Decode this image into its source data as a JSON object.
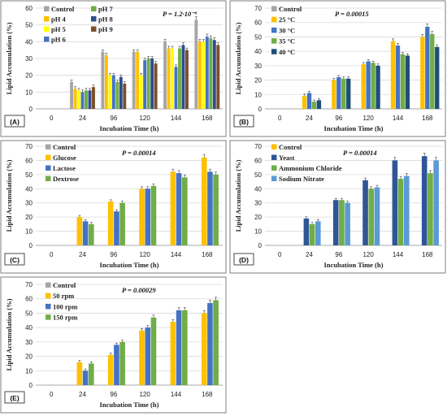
{
  "chart_data": [
    {
      "id": "A",
      "type": "bar",
      "panel_label": "(A)",
      "annotation": "P = 1.2·10⁻⁶",
      "xlabel": "Incubation Time (h)",
      "ylabel": "Lipid Accumulation (%)",
      "ylim": [
        0,
        60
      ],
      "yticks": [
        0,
        10,
        20,
        30,
        40,
        50,
        60
      ],
      "categories": [
        "0",
        "24",
        "96",
        "120",
        "144",
        "168"
      ],
      "legend_columns": 2,
      "series": [
        {
          "name": "Control",
          "color": "#a6a6a6",
          "values": [
            0,
            16,
            34,
            34,
            40,
            53
          ]
        },
        {
          "name": "pH 4",
          "color": "#ffc000",
          "values": [
            0,
            12,
            32,
            34,
            36,
            40
          ]
        },
        {
          "name": "pH 5",
          "color": "#ffff00",
          "values": [
            0,
            11,
            20,
            20,
            36,
            40
          ]
        },
        {
          "name": "pH 6",
          "color": "#4472c4",
          "values": [
            0,
            10,
            20,
            29,
            25,
            43
          ]
        },
        {
          "name": "pH 7",
          "color": "#70ad47",
          "values": [
            0,
            11,
            16,
            30,
            36,
            42
          ]
        },
        {
          "name": "pH 8",
          "color": "#2e4d8a",
          "values": [
            0,
            11,
            19,
            30,
            38,
            41
          ]
        },
        {
          "name": "pH 9",
          "color": "#7b4f2a",
          "values": [
            0,
            13,
            15,
            27,
            35,
            38
          ]
        }
      ]
    },
    {
      "id": "B",
      "type": "bar",
      "panel_label": "(B)",
      "annotation": "P = 0.00015",
      "xlabel": "Incubation Time (h)",
      "ylabel": "Lipid Accumulation (%)",
      "ylim": [
        0,
        70
      ],
      "yticks": [
        0,
        10,
        20,
        30,
        40,
        50,
        60,
        70
      ],
      "categories": [
        "0",
        "24",
        "96",
        "120",
        "144",
        "168"
      ],
      "legend_columns": 1,
      "series": [
        {
          "name": "Control",
          "color": "#a6a6a6",
          "values": [
            0,
            0,
            0,
            0,
            0,
            0
          ]
        },
        {
          "name": "25 °C",
          "color": "#ffc000",
          "values": [
            0,
            9,
            20,
            31,
            47,
            50
          ]
        },
        {
          "name": "30 °C",
          "color": "#4472c4",
          "values": [
            0,
            11,
            22,
            33,
            44,
            57
          ]
        },
        {
          "name": "35 °C",
          "color": "#70ad47",
          "values": [
            0,
            5,
            21,
            32,
            38,
            52
          ]
        },
        {
          "name": "40 °C",
          "color": "#1f4e79",
          "values": [
            0,
            6,
            21,
            30,
            37,
            43
          ]
        }
      ]
    },
    {
      "id": "C",
      "type": "bar",
      "panel_label": "(C)",
      "annotation": "P = 0.00014",
      "xlabel": "Incubation Time (h)",
      "ylabel": "Lipid Accumulation (%)",
      "ylim": [
        0,
        70
      ],
      "yticks": [
        0,
        10,
        20,
        30,
        40,
        50,
        60,
        70
      ],
      "categories": [
        "0",
        "24",
        "96",
        "120",
        "144",
        "168"
      ],
      "legend_columns": 1,
      "series": [
        {
          "name": "Control",
          "color": "#a6a6a6",
          "values": [
            0,
            0,
            0,
            0,
            0,
            0
          ]
        },
        {
          "name": "Glucose",
          "color": "#ffc000",
          "values": [
            0,
            20,
            31,
            40,
            52,
            62
          ]
        },
        {
          "name": "Lactose",
          "color": "#4472c4",
          "values": [
            0,
            17,
            24,
            40,
            51,
            52
          ]
        },
        {
          "name": "Dextrose",
          "color": "#70ad47",
          "values": [
            0,
            15,
            30,
            42,
            48,
            50
          ]
        }
      ]
    },
    {
      "id": "D",
      "type": "bar",
      "panel_label": "(D)",
      "annotation": "P = 0.00014",
      "xlabel": "Incubation Time (h)",
      "ylabel": "Lipid Accumulation (%)",
      "ylim": [
        0,
        70
      ],
      "yticks": [
        0,
        10,
        20,
        30,
        40,
        50,
        60,
        70
      ],
      "categories": [
        "0",
        "24",
        "96",
        "120",
        "144",
        "168"
      ],
      "legend_columns": 1,
      "series": [
        {
          "name": "Control",
          "color": "#ffc000",
          "values": [
            0,
            0,
            0,
            0,
            0,
            0
          ]
        },
        {
          "name": "Yeast",
          "color": "#2f5597",
          "values": [
            0,
            19,
            32,
            46,
            60,
            63
          ]
        },
        {
          "name": "Ammonium Chloride",
          "color": "#70ad47",
          "values": [
            0,
            15,
            32,
            40,
            47,
            51
          ]
        },
        {
          "name": "Sodium Nitrate",
          "color": "#5b9bd5",
          "values": [
            0,
            17,
            30,
            41,
            49,
            60
          ]
        }
      ]
    },
    {
      "id": "E",
      "type": "bar",
      "panel_label": "(E)",
      "annotation": "P = 0.00029",
      "xlabel": "Incubation Time (h)",
      "ylabel": "Lipid Accumulation (%)",
      "ylim": [
        0,
        70
      ],
      "yticks": [
        0,
        10,
        20,
        30,
        40,
        50,
        60,
        70
      ],
      "categories": [
        "0",
        "24",
        "96",
        "120",
        "144",
        "168"
      ],
      "legend_columns": 1,
      "series": [
        {
          "name": "Control",
          "color": "#a6a6a6",
          "values": [
            0,
            0,
            0,
            0,
            0,
            0
          ]
        },
        {
          "name": "50 rpm",
          "color": "#ffc000",
          "values": [
            0,
            16,
            21,
            38,
            44,
            50
          ]
        },
        {
          "name": "100 rpm",
          "color": "#4472c4",
          "values": [
            0,
            10,
            28,
            40,
            52,
            57
          ]
        },
        {
          "name": "150 rpm",
          "color": "#70ad47",
          "values": [
            0,
            15,
            30,
            47,
            52,
            59
          ]
        }
      ]
    }
  ]
}
